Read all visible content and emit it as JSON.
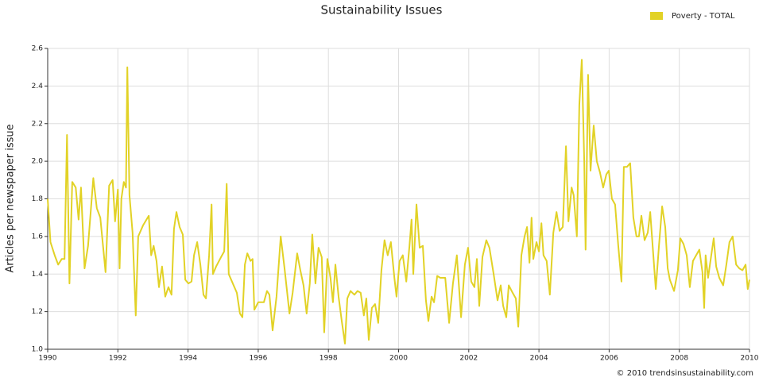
{
  "chart_data": {
    "type": "line",
    "title": "Sustainability Issues",
    "ylabel": "Articles per newspaper issue",
    "source": "© 2010 trendsinsustainability.com",
    "legend": "top-right",
    "grid": true,
    "xlim": [
      1990,
      2010
    ],
    "xticks": [
      1990,
      1992,
      1994,
      1996,
      1998,
      2000,
      2002,
      2004,
      2006,
      2008,
      2010
    ],
    "ylim": [
      1,
      2.6
    ],
    "yticks": [
      {
        "value": 1,
        "label": "1.0"
      },
      1.2,
      1.4,
      1.6,
      1.8,
      {
        "value": 2,
        "label": "2.0"
      },
      2.2,
      2.4,
      2.6
    ],
    "x": [
      1990.0,
      1990.08,
      1990.2,
      1990.3,
      1990.4,
      1990.48,
      1990.55,
      1990.62,
      1990.7,
      1990.8,
      1990.88,
      1990.95,
      1991.05,
      1991.15,
      1991.3,
      1991.4,
      1991.5,
      1991.65,
      1991.75,
      1991.85,
      1991.92,
      1992.0,
      1992.05,
      1992.1,
      1992.17,
      1992.23,
      1992.27,
      1992.33,
      1992.42,
      1992.51,
      1992.58,
      1992.72,
      1992.88,
      1992.95,
      1993.02,
      1993.1,
      1993.17,
      1993.26,
      1993.35,
      1993.44,
      1993.53,
      1993.6,
      1993.67,
      1993.76,
      1993.85,
      1993.92,
      1994.01,
      1994.1,
      1994.17,
      1994.26,
      1994.35,
      1994.44,
      1994.51,
      1994.6,
      1994.67,
      1994.71,
      1994.8,
      1994.94,
      1995.03,
      1995.1,
      1995.16,
      1995.39,
      1995.48,
      1995.55,
      1995.62,
      1995.69,
      1995.78,
      1995.84,
      1995.89,
      1996.0,
      1996.16,
      1996.25,
      1996.32,
      1996.41,
      1996.52,
      1996.64,
      1996.75,
      1996.89,
      1996.98,
      1997.11,
      1997.2,
      1997.29,
      1997.38,
      1997.47,
      1997.54,
      1997.63,
      1997.72,
      1997.81,
      1997.88,
      1997.97,
      1998.06,
      1998.13,
      1998.2,
      1998.29,
      1998.38,
      1998.47,
      1998.54,
      1998.63,
      1998.74,
      1998.83,
      1998.92,
      1999.01,
      1999.08,
      1999.15,
      1999.24,
      1999.33,
      1999.42,
      1999.51,
      1999.6,
      1999.69,
      1999.78,
      1999.88,
      1999.94,
      2000.03,
      2000.12,
      2000.22,
      2000.31,
      2000.37,
      2000.42,
      2000.51,
      2000.6,
      2000.69,
      2000.78,
      2000.85,
      2000.94,
      2001.01,
      2001.1,
      2001.19,
      2001.33,
      2001.44,
      2001.55,
      2001.66,
      2001.78,
      2001.89,
      2001.98,
      2002.07,
      2002.16,
      2002.23,
      2002.3,
      2002.39,
      2002.5,
      2002.59,
      2002.71,
      2002.82,
      2002.91,
      2002.98,
      2003.07,
      2003.14,
      2003.25,
      2003.34,
      2003.41,
      2003.5,
      2003.59,
      2003.66,
      2003.73,
      2003.79,
      2003.84,
      2003.93,
      2004.0,
      2004.07,
      2004.13,
      2004.22,
      2004.31,
      2004.41,
      2004.5,
      2004.59,
      2004.68,
      2004.77,
      2004.84,
      2004.93,
      2004.99,
      2005.08,
      2005.15,
      2005.22,
      2005.29,
      2005.33,
      2005.4,
      2005.47,
      2005.56,
      2005.65,
      2005.74,
      2005.83,
      2005.92,
      2005.99,
      2006.08,
      2006.17,
      2006.26,
      2006.35,
      2006.42,
      2006.51,
      2006.6,
      2006.69,
      2006.78,
      2006.85,
      2006.92,
      2007.01,
      2007.1,
      2007.17,
      2007.26,
      2007.33,
      2007.42,
      2007.51,
      2007.6,
      2007.67,
      2007.73,
      2007.85,
      2007.96,
      2008.03,
      2008.12,
      2008.21,
      2008.3,
      2008.39,
      2008.48,
      2008.57,
      2008.66,
      2008.71,
      2008.75,
      2008.82,
      2008.91,
      2008.98,
      2009.05,
      2009.14,
      2009.25,
      2009.34,
      2009.43,
      2009.52,
      2009.62,
      2009.71,
      2009.8,
      2009.89,
      2009.95,
      2010.0
    ],
    "series": [
      {
        "name": "Poverty - TOTAL",
        "color": "#e2d226",
        "values": [
          1.8,
          1.57,
          1.5,
          1.45,
          1.48,
          1.48,
          2.14,
          1.35,
          1.89,
          1.86,
          1.69,
          1.86,
          1.43,
          1.55,
          1.91,
          1.75,
          1.7,
          1.41,
          1.87,
          1.9,
          1.68,
          1.85,
          1.43,
          1.8,
          1.89,
          1.86,
          2.5,
          1.82,
          1.62,
          1.18,
          1.6,
          1.66,
          1.71,
          1.5,
          1.55,
          1.47,
          1.33,
          1.44,
          1.28,
          1.33,
          1.29,
          1.64,
          1.73,
          1.65,
          1.61,
          1.37,
          1.35,
          1.36,
          1.5,
          1.57,
          1.45,
          1.29,
          1.27,
          1.5,
          1.77,
          1.4,
          1.44,
          1.49,
          1.52,
          1.88,
          1.4,
          1.3,
          1.19,
          1.17,
          1.45,
          1.51,
          1.47,
          1.48,
          1.21,
          1.25,
          1.25,
          1.31,
          1.29,
          1.1,
          1.28,
          1.6,
          1.43,
          1.19,
          1.3,
          1.51,
          1.42,
          1.34,
          1.19,
          1.35,
          1.61,
          1.35,
          1.54,
          1.49,
          1.09,
          1.48,
          1.38,
          1.25,
          1.45,
          1.28,
          1.15,
          1.03,
          1.27,
          1.31,
          1.29,
          1.31,
          1.3,
          1.18,
          1.27,
          1.05,
          1.22,
          1.24,
          1.14,
          1.42,
          1.58,
          1.5,
          1.57,
          1.38,
          1.28,
          1.47,
          1.5,
          1.36,
          1.55,
          1.69,
          1.4,
          1.77,
          1.54,
          1.55,
          1.26,
          1.15,
          1.28,
          1.25,
          1.39,
          1.38,
          1.38,
          1.14,
          1.35,
          1.5,
          1.17,
          1.45,
          1.54,
          1.36,
          1.33,
          1.48,
          1.23,
          1.49,
          1.58,
          1.54,
          1.4,
          1.26,
          1.34,
          1.23,
          1.17,
          1.34,
          1.3,
          1.27,
          1.12,
          1.5,
          1.6,
          1.65,
          1.46,
          1.7,
          1.48,
          1.57,
          1.52,
          1.67,
          1.5,
          1.47,
          1.29,
          1.62,
          1.73,
          1.63,
          1.65,
          2.08,
          1.68,
          1.86,
          1.82,
          1.6,
          2.3,
          2.54,
          2.0,
          1.53,
          2.46,
          1.95,
          2.19,
          2.0,
          1.94,
          1.86,
          1.93,
          1.95,
          1.8,
          1.77,
          1.55,
          1.36,
          1.97,
          1.97,
          1.99,
          1.7,
          1.6,
          1.6,
          1.71,
          1.58,
          1.62,
          1.73,
          1.5,
          1.32,
          1.55,
          1.76,
          1.65,
          1.43,
          1.37,
          1.31,
          1.42,
          1.59,
          1.56,
          1.5,
          1.33,
          1.47,
          1.5,
          1.53,
          1.41,
          1.22,
          1.5,
          1.38,
          1.5,
          1.59,
          1.44,
          1.38,
          1.34,
          1.45,
          1.57,
          1.6,
          1.45,
          1.43,
          1.42,
          1.45,
          1.32,
          1.37
        ]
      }
    ]
  }
}
